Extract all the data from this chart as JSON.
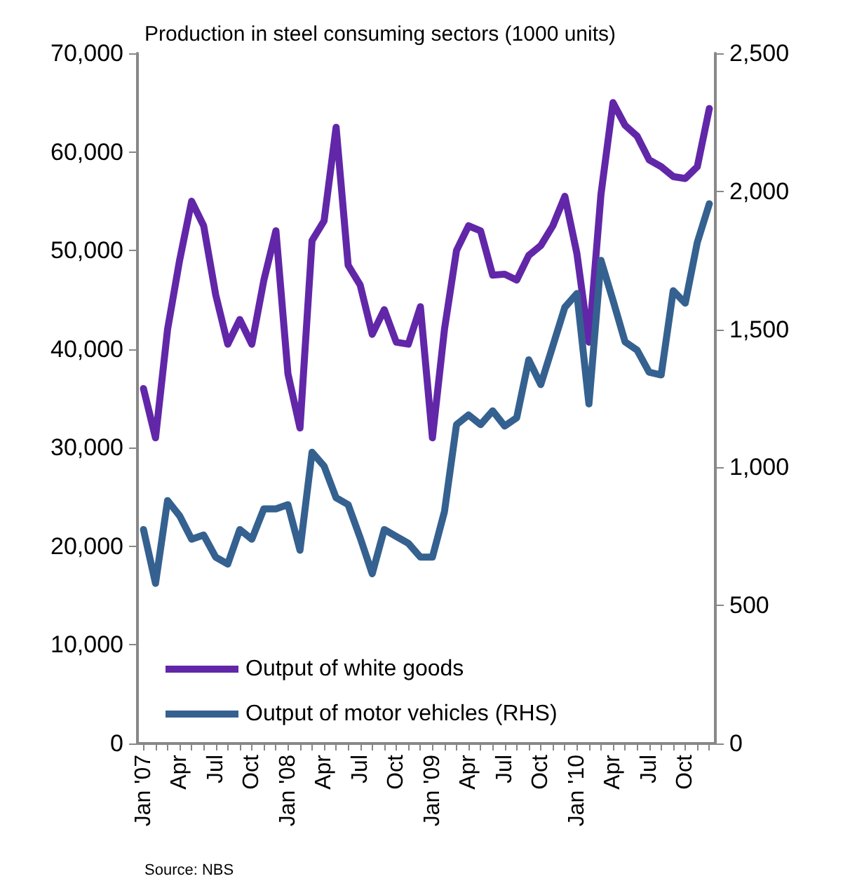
{
  "chart_data": {
    "type": "line",
    "title": "Production in steel consuming sectors (1000 units)",
    "annotations": [
      "Source: NBS"
    ],
    "categories": [
      "Jan '07",
      null,
      null,
      "Apr",
      null,
      null,
      "Jul",
      null,
      null,
      "Oct",
      null,
      null,
      "Jan '08",
      null,
      null,
      "Apr",
      null,
      null,
      "Jul",
      null,
      null,
      "Oct",
      null,
      null,
      "Jan '09",
      null,
      null,
      "Apr",
      null,
      null,
      "Jul",
      null,
      null,
      "Oct",
      null,
      null,
      "Jan '10",
      null,
      null,
      "Apr",
      null,
      null,
      "Jul",
      null,
      null,
      "Oct",
      null,
      null
    ],
    "series": [
      {
        "name": "Output of white goods",
        "color": "#6127a8",
        "values": [
          36000,
          31000,
          42000,
          49000,
          55000,
          52500,
          45500,
          40500,
          43000,
          40500,
          47000,
          52000,
          37500,
          32000,
          51000,
          53000,
          62500,
          48500,
          46500,
          41500,
          44000,
          40700,
          40500,
          44300,
          31000,
          42000,
          50000,
          52500,
          52000,
          47500,
          47600,
          47000,
          49500,
          50500,
          52500,
          55500,
          49700,
          40700,
          55700,
          65000,
          62700,
          61600,
          59200,
          58500,
          57500,
          57300,
          58500,
          64400
        ]
      },
      {
        "name": "Output of motor vehicles (RHS)",
        "color": "#356190",
        "axis": "y2",
        "values": [
          775,
          580,
          880,
          825,
          740,
          755,
          675,
          650,
          775,
          740,
          850,
          850,
          865,
          700,
          1055,
          1005,
          890,
          865,
          745,
          615,
          775,
          750,
          725,
          675,
          675,
          840,
          1155,
          1190,
          1155,
          1205,
          1150,
          1180,
          1390,
          1300,
          1440,
          1580,
          1630,
          1230,
          1750,
          1605,
          1455,
          1425,
          1345,
          1335,
          1640,
          1595,
          1815,
          1955
        ]
      }
    ],
    "ylim": [
      0,
      70000
    ],
    "yticks": [
      0,
      {
        "value": 10000,
        "label": "10,000"
      },
      {
        "value": 20000,
        "label": "20,000"
      },
      {
        "value": 30000,
        "label": "30,000"
      },
      {
        "value": 40000,
        "label": "40,000"
      },
      {
        "value": 50000,
        "label": "50,000"
      },
      {
        "value": 60000,
        "label": "60,000"
      },
      {
        "value": 70000,
        "label": "70,000"
      }
    ],
    "y2lim": [
      0,
      2500
    ],
    "y2ticks": [
      0,
      500,
      {
        "value": 1000,
        "label": "1,000"
      },
      {
        "value": 1500,
        "label": "1,500"
      },
      {
        "value": 2000,
        "label": "2,000"
      },
      {
        "value": 2500,
        "label": "2,500"
      }
    ],
    "grid": false,
    "legend": "bottom left",
    "marker": "none",
    "line_style": "solid"
  }
}
